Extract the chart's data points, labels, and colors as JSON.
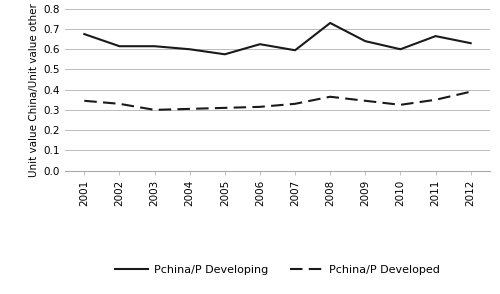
{
  "years": [
    2001,
    2002,
    2003,
    2004,
    2005,
    2006,
    2007,
    2008,
    2009,
    2010,
    2011,
    2012
  ],
  "developing": [
    0.675,
    0.615,
    0.615,
    0.6,
    0.575,
    0.625,
    0.595,
    0.73,
    0.64,
    0.6,
    0.665,
    0.63
  ],
  "developed": [
    0.345,
    0.33,
    0.3,
    0.305,
    0.31,
    0.315,
    0.33,
    0.365,
    0.345,
    0.325,
    0.35,
    0.39
  ],
  "ylabel": "Unit value China/Unit value other",
  "ylim": [
    0.0,
    0.8
  ],
  "yticks": [
    0.0,
    0.1,
    0.2,
    0.3,
    0.4,
    0.5,
    0.6,
    0.7,
    0.8
  ],
  "legend_developing": "Pchina/P Developing",
  "legend_developed": "Pchina/P Developed",
  "line_color": "#1a1a1a",
  "background_color": "#ffffff",
  "grid_color": "#bbbbbb"
}
